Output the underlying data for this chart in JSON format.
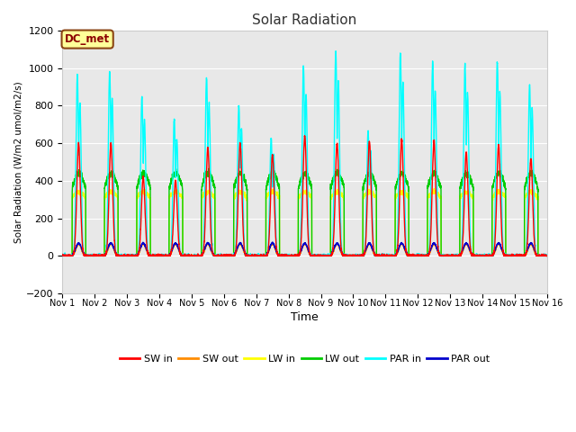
{
  "title": "Solar Radiation",
  "ylabel": "Solar Radiation (W/m2 umol/m2/s)",
  "xlabel": "Time",
  "ylim": [
    -200,
    1200
  ],
  "xlim": [
    0,
    15
  ],
  "x_tick_labels": [
    "Nov 1",
    "Nov 2",
    "Nov 3",
    "Nov 4",
    "Nov 5",
    "Nov 6",
    "Nov 7",
    "Nov 8",
    "Nov 9",
    "Nov 10",
    "Nov 11",
    "Nov 12",
    "Nov 13",
    "Nov 14",
    "Nov 15",
    "Nov 16"
  ],
  "background_color": "white",
  "plot_bg_color": "#e8e8e8",
  "grid_color": "white",
  "annotation_text": "DC_met",
  "annotation_color": "#8B0000",
  "annotation_bg": "#ffff99",
  "series": {
    "SW_in": {
      "color": "#ff0000",
      "lw": 1.0
    },
    "SW_out": {
      "color": "#ff8c00",
      "lw": 1.0
    },
    "LW_in": {
      "color": "#ffff00",
      "lw": 1.0
    },
    "LW_out": {
      "color": "#00cc00",
      "lw": 1.0
    },
    "PAR_in": {
      "color": "#00ffff",
      "lw": 1.0
    },
    "PAR_out": {
      "color": "#0000cc",
      "lw": 1.0
    }
  },
  "legend_labels": [
    "SW in",
    "SW out",
    "LW in",
    "LW out",
    "PAR in",
    "PAR out"
  ],
  "legend_colors": [
    "#ff0000",
    "#ff8c00",
    "#ffff00",
    "#00cc00",
    "#00ffff",
    "#0000cc"
  ],
  "yticks": [
    -200,
    0,
    200,
    400,
    600,
    800,
    1000,
    1200
  ]
}
